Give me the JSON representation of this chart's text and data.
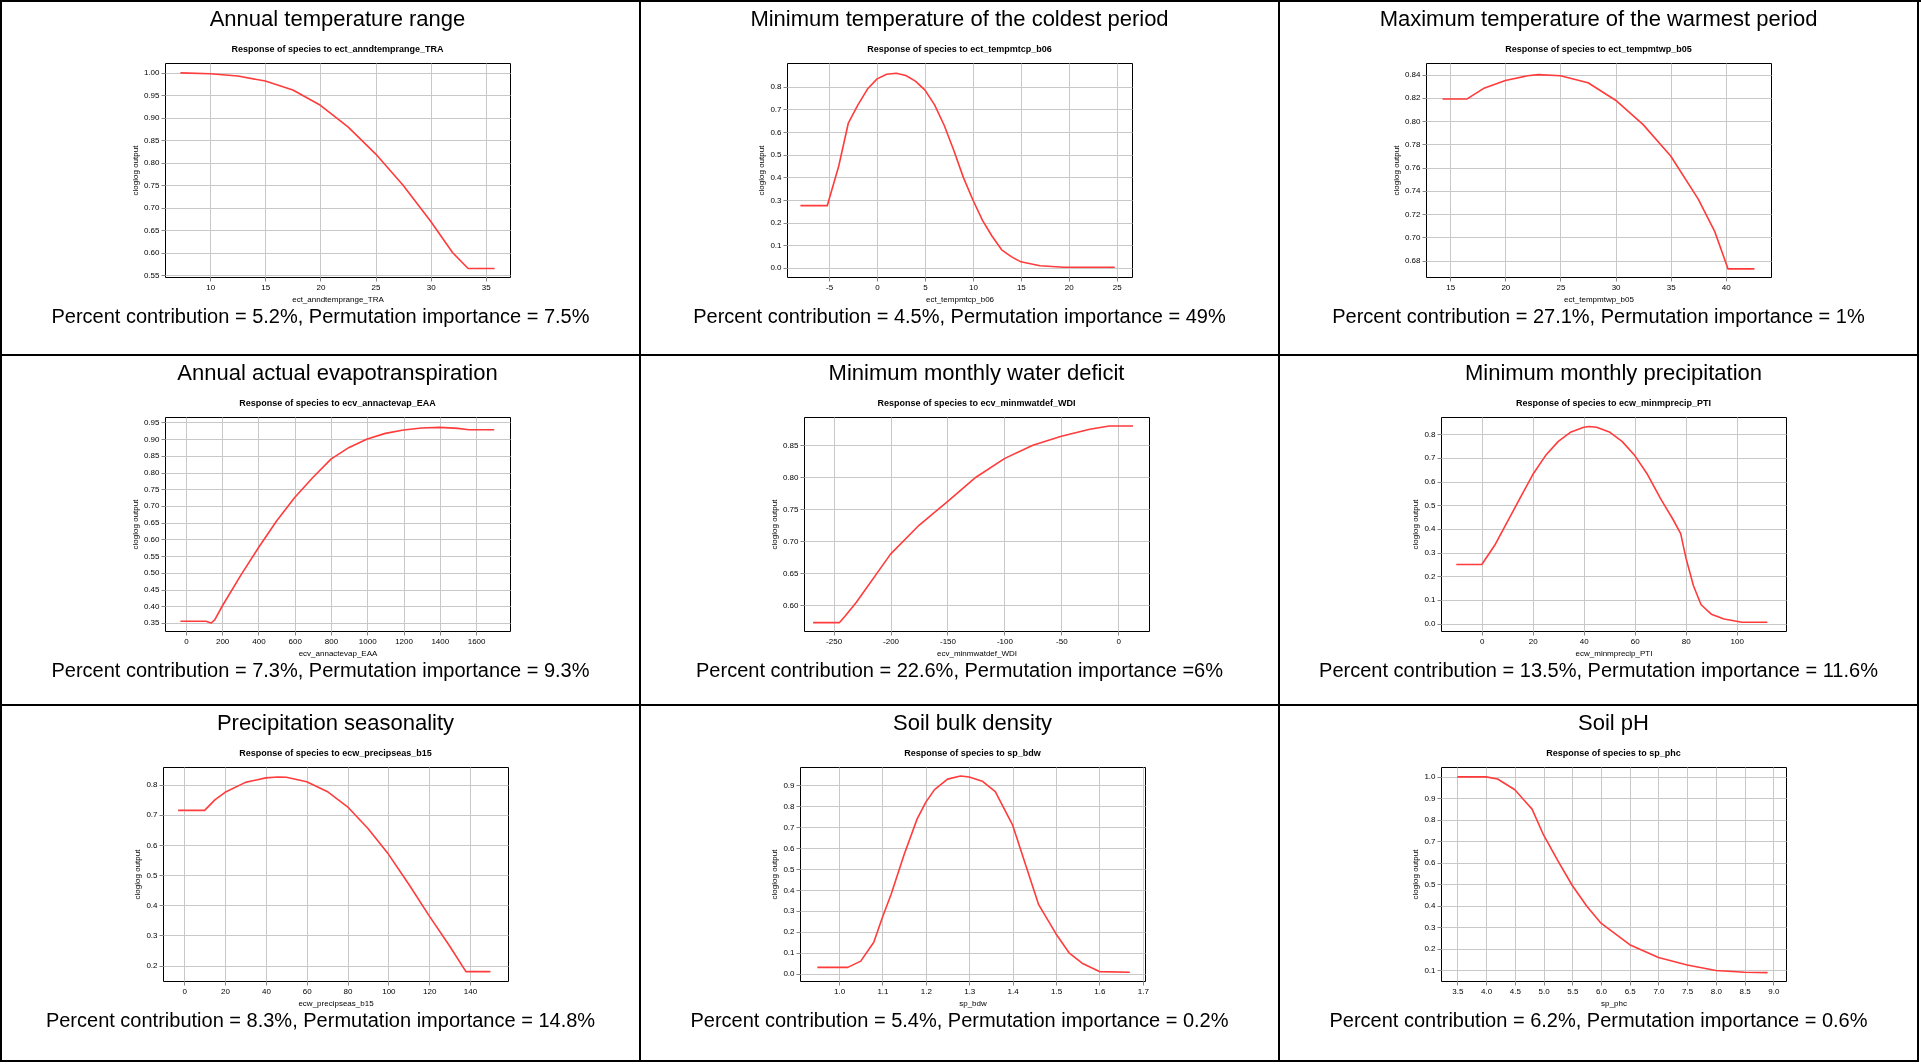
{
  "chart_data": [
    {
      "type": "line",
      "title": "Annual temperature range",
      "subtitle": "Response of species to ect_anndtemprange_TRA",
      "xlabel": "ect_anndtemprange_TRA",
      "ylabel": "cloglog output",
      "annotations": [
        "Percent contribution = 5.2%, Permutation importance = 7.5%"
      ],
      "grid": true,
      "marker": "none",
      "xlim": [
        5.9,
        37.2
      ],
      "ylim": [
        0.546,
        1.022
      ],
      "xticks": [
        10,
        15,
        20,
        25,
        30,
        35
      ],
      "yticks": [
        0.55,
        {
          "value": 0.6,
          "label": "0.60"
        },
        0.65,
        {
          "value": 0.7,
          "label": "0.70"
        },
        0.75,
        {
          "value": 0.8,
          "label": "0.80"
        },
        0.85,
        {
          "value": 0.9,
          "label": "0.90"
        },
        0.95,
        {
          "value": 1,
          "label": "1.00"
        }
      ],
      "series": [
        {
          "color": "#ff3b3b",
          "x": [
            7.3,
            10,
            12.5,
            15,
            17.5,
            20,
            22.5,
            25,
            27.5,
            30,
            32,
            33.4,
            35.8
          ],
          "values": [
            1.0,
            0.998,
            0.993,
            0.982,
            0.962,
            0.928,
            0.88,
            0.82,
            0.75,
            0.67,
            0.6,
            0.565,
            0.565
          ]
        }
      ]
    },
    {
      "type": "line",
      "title": "Minimum temperature of the coldest period",
      "subtitle": "Response of species to ect_tempmtcp_b06",
      "xlabel": "ect_tempmtcp_b06",
      "ylabel": "cloglog output",
      "annotations": [
        "Percent contribution = 4.5%, Permutation importance = 49%"
      ],
      "grid": true,
      "marker": "none",
      "xlim": [
        -9.4,
        26.6
      ],
      "ylim": [
        -0.04,
        0.905
      ],
      "xticks": [
        -5,
        0,
        5,
        10,
        15,
        20,
        25
      ],
      "yticks": [
        {
          "value": 0,
          "label": "0.0"
        },
        0.1,
        0.2,
        0.3,
        0.4,
        0.5,
        0.6,
        0.7,
        0.8
      ],
      "series": [
        {
          "color": "#ff3b3b",
          "x": [
            -8,
            -5.2,
            -4,
            -3,
            -2,
            -1,
            0,
            1,
            2,
            3,
            4,
            5,
            6,
            7,
            8,
            9,
            10,
            11,
            12,
            13,
            14,
            15,
            17,
            19.5,
            24.8
          ],
          "values": [
            0.275,
            0.275,
            0.45,
            0.64,
            0.72,
            0.79,
            0.835,
            0.855,
            0.86,
            0.85,
            0.825,
            0.785,
            0.72,
            0.63,
            0.52,
            0.4,
            0.3,
            0.21,
            0.14,
            0.08,
            0.05,
            0.027,
            0.01,
            0.003,
            0.003
          ]
        }
      ]
    },
    {
      "type": "line",
      "title": "Maximum temperature of the warmest period",
      "subtitle": "Response of species to ect_tempmtwp_b05",
      "xlabel": "ect_tempmtwp_b05",
      "ylabel": "cloglog output",
      "annotations": [
        "Percent contribution = 27.1%, Permutation importance = 1%"
      ],
      "grid": true,
      "marker": "none",
      "xlim": [
        12.8,
        44.1
      ],
      "ylim": [
        0.666,
        0.85
      ],
      "xticks": [
        15,
        20,
        25,
        30,
        35,
        40
      ],
      "yticks": [
        0.68,
        {
          "value": 0.7,
          "label": "0.70"
        },
        0.72,
        0.74,
        0.76,
        0.78,
        {
          "value": 0.8,
          "label": "0.80"
        },
        0.82,
        0.84
      ],
      "series": [
        {
          "color": "#ff3b3b",
          "x": [
            14.3,
            16.5,
            18,
            20,
            22,
            23,
            25,
            27.5,
            30,
            32.5,
            35,
            37.5,
            39,
            40.2,
            42.6
          ],
          "values": [
            0.819,
            0.819,
            0.828,
            0.835,
            0.839,
            0.84,
            0.839,
            0.833,
            0.818,
            0.797,
            0.77,
            0.733,
            0.705,
            0.673,
            0.673
          ]
        }
      ]
    },
    {
      "type": "line",
      "title": "Annual actual evapotranspiration",
      "subtitle": "Response of species to ecv_annactevap_EAA",
      "xlabel": "ecv_annactevap_EAA",
      "ylabel": "cloglog output",
      "annotations": [
        "Percent contribution = 7.3%, Permutation importance = 9.3%"
      ],
      "grid": true,
      "marker": "none",
      "xlim": [
        -115,
        1787
      ],
      "ylim": [
        0.326,
        0.966
      ],
      "xticks": [
        0,
        200,
        400,
        600,
        800,
        1000,
        1200,
        1400,
        1600
      ],
      "yticks": [
        0.35,
        {
          "value": 0.4,
          "label": "0.40"
        },
        0.45,
        {
          "value": 0.5,
          "label": "0.50"
        },
        0.55,
        {
          "value": 0.6,
          "label": "0.60"
        },
        0.65,
        {
          "value": 0.7,
          "label": "0.70"
        },
        0.75,
        {
          "value": 0.8,
          "label": "0.80"
        },
        0.85,
        {
          "value": 0.9,
          "label": "0.90"
        },
        0.95
      ],
      "series": [
        {
          "color": "#ff3b3b",
          "x": [
            -30,
            110,
            140,
            160,
            200,
            300,
            400,
            500,
            600,
            700,
            800,
            900,
            1000,
            1100,
            1200,
            1300,
            1400,
            1500,
            1560,
            1700
          ],
          "values": [
            0.355,
            0.355,
            0.35,
            0.36,
            0.4,
            0.49,
            0.575,
            0.655,
            0.725,
            0.785,
            0.84,
            0.875,
            0.9,
            0.917,
            0.927,
            0.933,
            0.935,
            0.932,
            0.928,
            0.928
          ]
        }
      ]
    },
    {
      "type": "line",
      "title": "Minimum monthly water deficit",
      "subtitle": "Response of species to ecv_minmwatdef_WDI",
      "xlabel": "ecv_minmwatdef_WDI",
      "ylabel": "cloglog output",
      "annotations": [
        "Percent contribution = 22.6%, Permutation importance =6%"
      ],
      "grid": true,
      "marker": "none",
      "xlim": [
        -276,
        27
      ],
      "ylim": [
        0.56,
        0.894
      ],
      "xticks": [
        -250,
        -200,
        -150,
        -100,
        -50,
        0
      ],
      "yticks": [
        {
          "value": 0.6,
          "label": "0.60"
        },
        0.65,
        {
          "value": 0.7,
          "label": "0.70"
        },
        0.75,
        {
          "value": 0.8,
          "label": "0.80"
        },
        0.85
      ],
      "series": [
        {
          "color": "#ff3b3b",
          "x": [
            -268,
            -245,
            -240,
            -230,
            -200,
            -175,
            -150,
            -125,
            -100,
            -75,
            -50,
            -25,
            -8,
            13
          ],
          "values": [
            0.573,
            0.573,
            0.583,
            0.605,
            0.68,
            0.725,
            0.762,
            0.8,
            0.829,
            0.85,
            0.864,
            0.875,
            0.88,
            0.88
          ]
        }
      ]
    },
    {
      "type": "line",
      "title": "Minimum monthly precipitation",
      "subtitle": "Response of species to ecw_minmprecip_PTI",
      "xlabel": "ecw_minmprecip_PTI",
      "ylabel": "cloglog output",
      "annotations": [
        "Percent contribution = 13.5%, Permutation importance = 11.6%"
      ],
      "grid": true,
      "marker": "none",
      "xlim": [
        -16,
        119.3
      ],
      "ylim": [
        -0.031,
        0.873
      ],
      "xticks": [
        0,
        20,
        40,
        60,
        80,
        100
      ],
      "yticks": [
        {
          "value": 0,
          "label": "0.0"
        },
        0.1,
        0.2,
        0.3,
        0.4,
        0.5,
        0.6,
        0.7,
        0.8
      ],
      "series": [
        {
          "color": "#ff3b3b",
          "x": [
            -10,
            0,
            5,
            10,
            15,
            20,
            25,
            30,
            35,
            40,
            42,
            45,
            50,
            55,
            60,
            65,
            70,
            75,
            78,
            80,
            83,
            86,
            90,
            95,
            102,
            112
          ],
          "values": [
            0.25,
            0.25,
            0.33,
            0.43,
            0.53,
            0.63,
            0.71,
            0.77,
            0.81,
            0.83,
            0.833,
            0.83,
            0.81,
            0.77,
            0.71,
            0.63,
            0.53,
            0.44,
            0.38,
            0.28,
            0.16,
            0.08,
            0.04,
            0.02,
            0.006,
            0.006
          ]
        }
      ]
    },
    {
      "type": "line",
      "title": "Precipitation seasonality",
      "subtitle": "Response of species to ecw_precipseas_b15",
      "xlabel": "ecw_precipseas_b15",
      "ylabel": "cloglog output",
      "annotations": [
        "Percent contribution = 8.3%, Permutation importance = 14.8%"
      ],
      "grid": true,
      "marker": "none",
      "xlim": [
        -10.4,
        158.6
      ],
      "ylim": [
        0.149,
        0.859
      ],
      "xticks": [
        0,
        20,
        40,
        60,
        80,
        100,
        120,
        140
      ],
      "yticks": [
        0.2,
        0.3,
        0.4,
        0.5,
        0.6,
        0.7,
        0.8
      ],
      "series": [
        {
          "color": "#ff3b3b",
          "x": [
            -3,
            10,
            15,
            20,
            30,
            40,
            46,
            50,
            60,
            70,
            80,
            90,
            100,
            110,
            120,
            130,
            138,
            150
          ],
          "values": [
            0.715,
            0.715,
            0.75,
            0.775,
            0.808,
            0.823,
            0.826,
            0.825,
            0.81,
            0.778,
            0.727,
            0.655,
            0.57,
            0.47,
            0.365,
            0.265,
            0.18,
            0.18
          ]
        }
      ]
    },
    {
      "type": "line",
      "title": "Soil bulk density",
      "subtitle": "Response of species to sp_bdw",
      "xlabel": "sp_bdw",
      "ylabel": "cloglog output",
      "annotations": [
        "Percent contribution = 5.4%, Permutation importance = 0.2%"
      ],
      "grid": true,
      "marker": "none",
      "xlim": [
        0.91,
        1.705
      ],
      "ylim": [
        -0.035,
        0.988
      ],
      "xticks": [
        {
          "value": 1,
          "label": "1.0"
        },
        1.1,
        1.2,
        1.3,
        1.4,
        1.5,
        1.6,
        1.7
      ],
      "yticks": [
        {
          "value": 0,
          "label": "0.0"
        },
        0.1,
        0.2,
        0.3,
        0.4,
        0.5,
        0.6,
        0.7,
        0.8,
        0.9
      ],
      "series": [
        {
          "color": "#ff3b3b",
          "x": [
            0.95,
            1.02,
            1.05,
            1.08,
            1.1,
            1.12,
            1.15,
            1.18,
            1.2,
            1.22,
            1.25,
            1.28,
            1.3,
            1.33,
            1.36,
            1.4,
            1.43,
            1.46,
            1.5,
            1.53,
            1.56,
            1.6,
            1.67
          ],
          "values": [
            0.03,
            0.03,
            0.06,
            0.15,
            0.27,
            0.38,
            0.57,
            0.74,
            0.82,
            0.88,
            0.93,
            0.945,
            0.94,
            0.92,
            0.87,
            0.71,
            0.52,
            0.33,
            0.19,
            0.1,
            0.05,
            0.01,
            0.007
          ]
        }
      ]
    },
    {
      "type": "line",
      "title": "Soil pH",
      "subtitle": "Response of species to sp_phc",
      "xlabel": "sp_phc",
      "ylabel": "cloglog output",
      "annotations": [
        "Percent contribution = 6.2%, Permutation importance = 0.6%"
      ],
      "grid": true,
      "marker": "none",
      "xlim": [
        3.215,
        9.22
      ],
      "ylim": [
        0.051,
        1.046
      ],
      "xticks": [
        3.5,
        {
          "value": 4,
          "label": "4.0"
        },
        4.5,
        {
          "value": 5,
          "label": "5.0"
        },
        5.5,
        {
          "value": 6,
          "label": "6.0"
        },
        6.5,
        {
          "value": 7,
          "label": "7.0"
        },
        7.5,
        {
          "value": 8,
          "label": "8.0"
        },
        8.5,
        {
          "value": 9,
          "label": "9.0"
        }
      ],
      "yticks": [
        0.1,
        0.2,
        0.3,
        0.4,
        0.5,
        0.6,
        0.7,
        0.8,
        0.9,
        {
          "value": 1,
          "label": "1.0"
        }
      ],
      "series": [
        {
          "color": "#ff3b3b",
          "x": [
            3.5,
            4.0,
            4.2,
            4.5,
            4.8,
            5.0,
            5.25,
            5.5,
            5.75,
            6.0,
            6.5,
            7.0,
            7.5,
            8.0,
            8.5,
            8.9
          ],
          "values": [
            1.0,
            1.0,
            0.99,
            0.94,
            0.85,
            0.73,
            0.61,
            0.495,
            0.4,
            0.32,
            0.22,
            0.16,
            0.125,
            0.1,
            0.092,
            0.09
          ]
        }
      ]
    }
  ]
}
